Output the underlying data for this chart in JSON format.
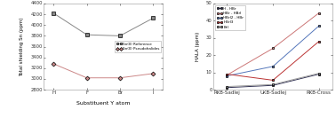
{
  "left": {
    "xlabel": "Substituent Y atom",
    "ylabel": "Total shielding Sn (ppm)",
    "xticks": [
      "H",
      "F",
      "Br",
      "I"
    ],
    "ylim": [
      2800,
      4400
    ],
    "yticks": [
      2800,
      3000,
      3200,
      3400,
      3600,
      3800,
      4000,
      4200,
      4400
    ],
    "series": [
      {
        "label": "Sn(II) Reference",
        "color": "#888888",
        "marker": "s",
        "markersize": 2.5,
        "linewidth": 0.7,
        "values": [
          4220,
          3820,
          3800,
          4130
        ]
      },
      {
        "label": "Sn(II) Pseudohalides",
        "color": "#cc8888",
        "marker": "D",
        "markersize": 2.5,
        "linewidth": 0.7,
        "values": [
          3280,
          3020,
          3020,
          3100
        ]
      }
    ],
    "legend_loc": "center right"
  },
  "right": {
    "xlabel": "",
    "ylabel": "HALA (ppm)",
    "xticks": [
      "RKB-Sadlej",
      "UKB-Sadlej",
      "RKB-Cross"
    ],
    "ylim": [
      0,
      50
    ],
    "yticks": [
      0,
      10,
      20,
      30,
      40,
      50
    ],
    "series": [
      {
        "label": "H - HBr",
        "color": "#333355",
        "marker": "s",
        "markersize": 2.0,
        "linewidth": 0.7,
        "linestyle": "-",
        "values": [
          1.2,
          2.5,
          9.0
        ]
      },
      {
        "label": "HBr - HBrI",
        "color": "#cc7777",
        "marker": "s",
        "markersize": 2.0,
        "linewidth": 0.7,
        "linestyle": "-",
        "values": [
          8.5,
          24.0,
          44.5
        ]
      },
      {
        "label": "HBrI2 - HBr",
        "color": "#5577bb",
        "marker": "s",
        "markersize": 2.0,
        "linewidth": 0.7,
        "linestyle": "-",
        "values": [
          8.0,
          13.5,
          37.0
        ]
      },
      {
        "label": "HBrI3",
        "color": "#bb3333",
        "marker": "s",
        "markersize": 2.0,
        "linewidth": 0.7,
        "linestyle": "-",
        "values": [
          9.0,
          5.5,
          28.0
        ]
      },
      {
        "label": "BrI",
        "color": "#999999",
        "marker": "s",
        "markersize": 2.0,
        "linewidth": 0.7,
        "linestyle": "-",
        "values": [
          1.8,
          3.0,
          9.5
        ]
      }
    ],
    "legend_loc": "upper left"
  }
}
